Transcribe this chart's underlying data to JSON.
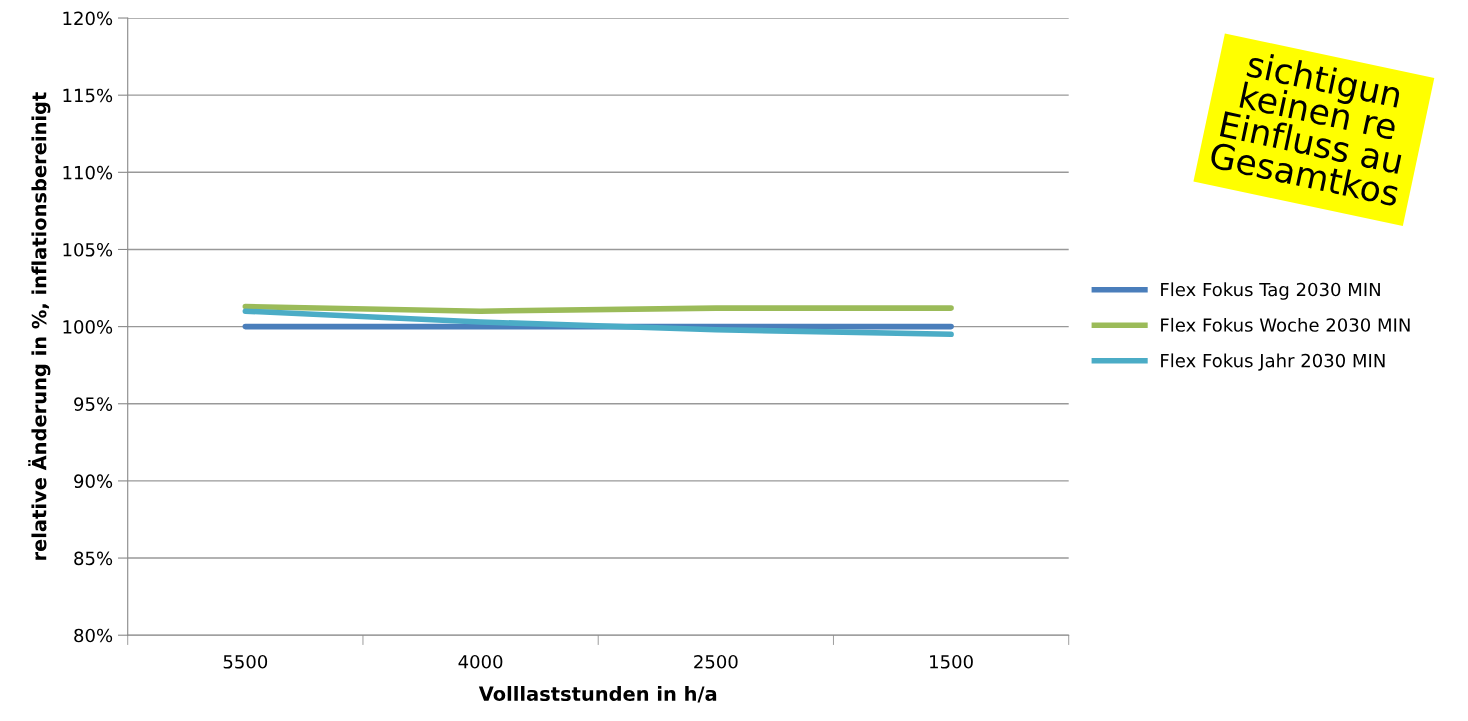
{
  "chart_data": {
    "type": "line",
    "xlabel": "Volllaststunden in h/a",
    "ylabel": "relative Änderung in %, inflationsbereinigt",
    "categories": [
      "5500",
      "4000",
      "2500",
      "1500"
    ],
    "series": [
      {
        "name": "Flex Fokus Tag 2030 MIN",
        "color": "#4a7ebb",
        "values": [
          100.0,
          100.0,
          100.0,
          100.0
        ]
      },
      {
        "name": "Flex Fokus Woche 2030 MIN",
        "color": "#9bbb59",
        "values": [
          101.3,
          101.0,
          101.2,
          101.2
        ]
      },
      {
        "name": "Flex Fokus Jahr 2030 MIN",
        "color": "#4bacc6",
        "values": [
          101.0,
          100.3,
          99.8,
          99.5
        ]
      }
    ],
    "ylim": [
      80,
      120
    ],
    "yticks": [
      {
        "value": 80,
        "label": "80%"
      },
      {
        "value": 85,
        "label": "85%"
      },
      {
        "value": 90,
        "label": "90%"
      },
      {
        "value": 95,
        "label": "95%"
      },
      {
        "value": 100,
        "label": "100%"
      },
      {
        "value": 105,
        "label": "105%"
      },
      {
        "value": 110,
        "label": "110%"
      },
      {
        "value": 115,
        "label": "115%"
      },
      {
        "value": 120,
        "label": "120%"
      }
    ],
    "grid": "y",
    "legend": "right",
    "marker": "none",
    "line_style": "solid",
    "annotations": [
      "sichtigun\nkeinen re\nEinfluss au\nGesamtkos"
    ]
  }
}
